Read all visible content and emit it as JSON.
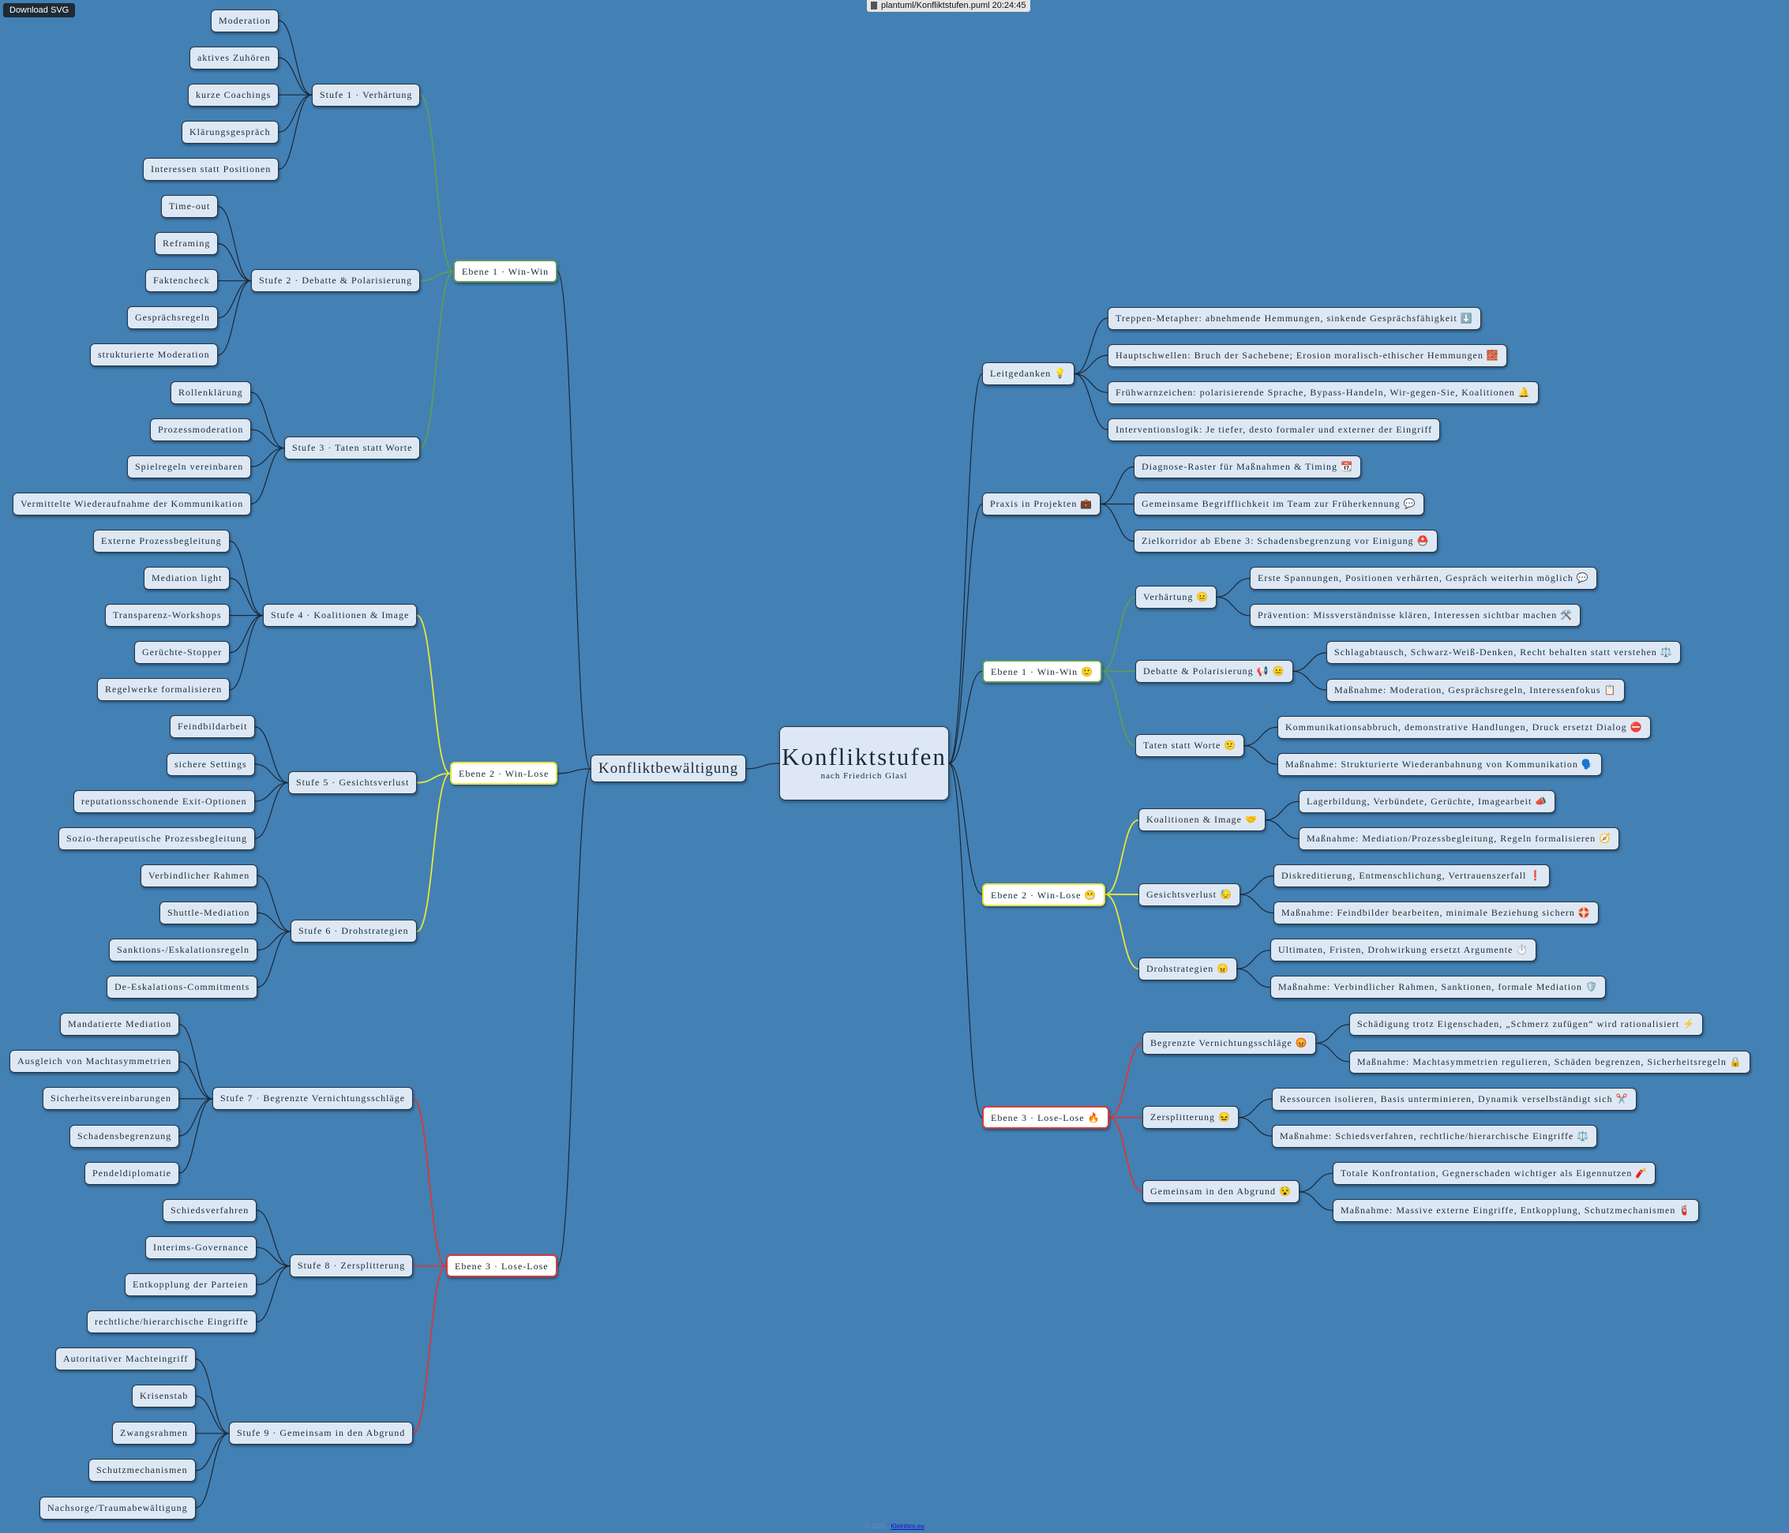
{
  "header": {
    "button": "Download SVG",
    "file": "plantuml/Konfliktstufen.puml 20:24:45"
  },
  "tree": {
    "label": "Konfliktstufen",
    "subtitle": "nach Friedrich Glasl",
    "left": [
      {
        "label": "Konfliktbewältigung",
        "children": [
          {
            "label": "Ebene 1 · Win-Win",
            "color": "#5f9c58",
            "children": [
              {
                "label": "Stufe 1 · Verhärtung",
                "children": [
                  {
                    "label": "Moderation"
                  },
                  {
                    "label": "aktives Zuhören"
                  },
                  {
                    "label": "kurze Coachings"
                  },
                  {
                    "label": "Klärungsgespräch"
                  },
                  {
                    "label": "Interessen statt Positionen"
                  }
                ]
              },
              {
                "label": "Stufe 2 · Debatte & Polarisierung",
                "children": [
                  {
                    "label": "Time-out"
                  },
                  {
                    "label": "Reframing"
                  },
                  {
                    "label": "Faktencheck"
                  },
                  {
                    "label": "Gesprächsregeln"
                  },
                  {
                    "label": "strukturierte Moderation"
                  }
                ]
              },
              {
                "label": "Stufe 3 · Taten statt Worte",
                "children": [
                  {
                    "label": "Rollenklärung"
                  },
                  {
                    "label": "Prozessmoderation"
                  },
                  {
                    "label": "Spielregeln vereinbaren"
                  },
                  {
                    "label": "Vermittelte Wiederaufnahme der Kommunikation"
                  }
                ]
              }
            ]
          },
          {
            "label": "Ebene 2 · Win-Lose",
            "color": "#e8e43c",
            "children": [
              {
                "label": "Stufe 4 · Koalitionen & Image",
                "children": [
                  {
                    "label": "Externe Prozessbegleitung"
                  },
                  {
                    "label": "Mediation light"
                  },
                  {
                    "label": "Transparenz-Workshops"
                  },
                  {
                    "label": "Gerüchte-Stopper"
                  },
                  {
                    "label": "Regelwerke formalisieren"
                  }
                ]
              },
              {
                "label": "Stufe 5 · Gesichtsverlust",
                "children": [
                  {
                    "label": "Feindbildarbeit"
                  },
                  {
                    "label": "sichere Settings"
                  },
                  {
                    "label": "reputationsschonende Exit-Optionen"
                  },
                  {
                    "label": "Sozio-therapeutische Prozessbegleitung"
                  }
                ]
              },
              {
                "label": "Stufe 6 · Drohstrategien",
                "children": [
                  {
                    "label": "Verbindlicher Rahmen"
                  },
                  {
                    "label": "Shuttle-Mediation"
                  },
                  {
                    "label": "Sanktions-/Eskalationsregeln"
                  },
                  {
                    "label": "De-Eskalations-Commitments"
                  }
                ]
              }
            ]
          },
          {
            "label": "Ebene 3 · Lose-Lose",
            "color": "#d63a3a",
            "children": [
              {
                "label": "Stufe 7 · Begrenzte Vernichtungsschläge",
                "children": [
                  {
                    "label": "Mandatierte Mediation"
                  },
                  {
                    "label": "Ausgleich von Machtasymmetrien"
                  },
                  {
                    "label": "Sicherheitsvereinbarungen"
                  },
                  {
                    "label": "Schadensbegrenzung"
                  },
                  {
                    "label": "Pendeldiplomatie"
                  }
                ]
              },
              {
                "label": "Stufe 8 · Zersplitterung",
                "children": [
                  {
                    "label": "Schiedsverfahren"
                  },
                  {
                    "label": "Interims-Governance"
                  },
                  {
                    "label": "Entkopplung der Parteien"
                  },
                  {
                    "label": "rechtliche/hierarchische Eingriffe"
                  }
                ]
              },
              {
                "label": "Stufe 9 · Gemeinsam in den Abgrund",
                "children": [
                  {
                    "label": "Autoritativer Machteingriff"
                  },
                  {
                    "label": "Krisenstab"
                  },
                  {
                    "label": "Zwangsrahmen"
                  },
                  {
                    "label": "Schutzmechanismen"
                  },
                  {
                    "label": "Nachsorge/Traumabewältigung"
                  }
                ]
              }
            ]
          }
        ]
      }
    ],
    "right": [
      {
        "label": "Leitgedanken 💡",
        "children": [
          {
            "label": "Treppen-Metapher: abnehmende Hemmungen, sinkende Gesprächsfähigkeit ⬇️"
          },
          {
            "label": "Hauptschwellen: Bruch der Sachebene; Erosion moralisch-ethischer Hemmungen 🧱"
          },
          {
            "label": "Frühwarnzeichen: polarisierende Sprache, Bypass-Handeln, Wir-gegen-Sie, Koalitionen 🔔"
          },
          {
            "label": "Interventionslogik: Je tiefer, desto formaler und externer der Eingriff"
          }
        ]
      },
      {
        "label": "Praxis in Projekten 💼",
        "children": [
          {
            "label": "Diagnose-Raster für Maßnahmen & Timing 📆"
          },
          {
            "label": "Gemeinsame Begrifflichkeit im Team zur Früherkennung 💬"
          },
          {
            "label": "Zielkorridor ab Ebene 3: Schadensbegrenzung vor Einigung ⛑️"
          }
        ]
      },
      {
        "label": "Ebene 1 · Win-Win 🙂",
        "color": "#5f9c58",
        "children": [
          {
            "label": "Verhärtung 😐",
            "children": [
              {
                "label": "Erste Spannungen, Positionen verhärten, Gespräch weiterhin möglich 💬"
              },
              {
                "label": "Prävention: Missverständnisse klären, Interessen sichtbar machen 🛠️"
              }
            ]
          },
          {
            "label": "Debatte & Polarisierung 📢 😐",
            "children": [
              {
                "label": "Schlagabtausch, Schwarz-Weiß-Denken, Recht behalten statt verstehen ⚖️"
              },
              {
                "label": "Maßnahme: Moderation, Gesprächsregeln, Interessenfokus 📋"
              }
            ]
          },
          {
            "label": "Taten statt Worte 😕",
            "children": [
              {
                "label": "Kommunikationsabbruch, demonstrative Handlungen, Druck ersetzt Dialog ⛔"
              },
              {
                "label": "Maßnahme: Strukturierte Wiederanbahnung von Kommunikation 🗣️"
              }
            ]
          }
        ]
      },
      {
        "label": "Ebene 2 · Win-Lose 😬",
        "color": "#e8e43c",
        "children": [
          {
            "label": "Koalitionen & Image 🤝",
            "children": [
              {
                "label": "Lagerbildung, Verbündete, Gerüchte, Imagearbeit 📣"
              },
              {
                "label": "Maßnahme: Mediation/Prozessbegleitung, Regeln formalisieren 🧭"
              }
            ]
          },
          {
            "label": "Gesichtsverlust 😓",
            "children": [
              {
                "label": "Diskreditierung, Entmenschlichung, Vertrauenszerfall ❗"
              },
              {
                "label": "Maßnahme: Feindbilder bearbeiten, minimale Beziehung sichern 🛟"
              }
            ]
          },
          {
            "label": "Drohstrategien 😠",
            "children": [
              {
                "label": "Ultimaten, Fristen, Drohwirkung ersetzt Argumente ⏱️"
              },
              {
                "label": "Maßnahme: Verbindlicher Rahmen, Sanktionen, formale Mediation 🛡️"
              }
            ]
          }
        ]
      },
      {
        "label": "Ebene 3 · Lose-Lose 🔥",
        "color": "#d63a3a",
        "children": [
          {
            "label": "Begrenzte Vernichtungsschläge 😡",
            "children": [
              {
                "label": "Schädigung trotz Eigenschaden, „Schmerz zufügen“ wird rationalisiert ⚡"
              },
              {
                "label": "Maßnahme: Machtasymmetrien regulieren, Schäden begrenzen, Sicherheitsregeln 🔒"
              }
            ]
          },
          {
            "label": "Zersplitterung 😖",
            "children": [
              {
                "label": "Ressourcen isolieren, Basis unterminieren, Dynamik verselbständigt sich ✂️"
              },
              {
                "label": "Maßnahme: Schiedsverfahren, rechtliche/hierarchische Eingriffe ⚖️"
              }
            ]
          },
          {
            "label": "Gemeinsam in den Abgrund 😵",
            "children": [
              {
                "label": "Totale Konfrontation, Gegnerschaden wichtiger als Eigennutzen 🧨"
              },
              {
                "label": "Maßnahme: Massive externe Eingriffe, Entkopplung, Schutzmechanismen 🧯"
              }
            ]
          }
        ]
      }
    ]
  },
  "footer": {
    "text": "© 2025 ·",
    "link": "Kleinhirn.eu"
  }
}
